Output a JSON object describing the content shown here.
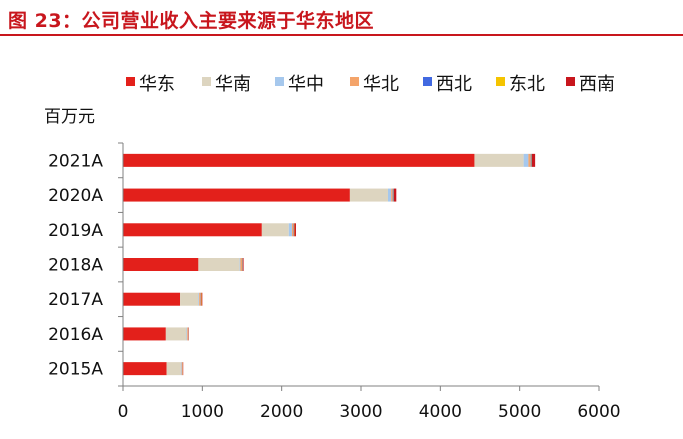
{
  "figure_title": "图 23：公司营业收入主要来源于华东地区",
  "chart_data": {
    "type": "bar",
    "orientation": "horizontal",
    "stacked": true,
    "unit_label": "百万元",
    "categories": [
      "2021A",
      "2020A",
      "2019A",
      "2018A",
      "2017A",
      "2016A",
      "2015A"
    ],
    "series": [
      {
        "name": "华东",
        "color": "#e3201b",
        "values": [
          4430,
          2860,
          1750,
          950,
          720,
          540,
          550
        ]
      },
      {
        "name": "华南",
        "color": "#ddd5c0",
        "values": [
          620,
          480,
          340,
          520,
          230,
          260,
          180
        ]
      },
      {
        "name": "华中",
        "color": "#a6c8ed",
        "values": [
          60,
          40,
          40,
          10,
          10,
          10,
          10
        ]
      },
      {
        "name": "华北",
        "color": "#f4a46a",
        "values": [
          30,
          20,
          20,
          20,
          20,
          10,
          10
        ]
      },
      {
        "name": "西北",
        "color": "#4169e1",
        "values": [
          10,
          10,
          5,
          5,
          5,
          2,
          2
        ]
      },
      {
        "name": "东北",
        "color": "#f5c400",
        "values": [
          5,
          5,
          5,
          5,
          5,
          2,
          2
        ]
      },
      {
        "name": "西南",
        "color": "#c8161d",
        "values": [
          40,
          30,
          20,
          10,
          10,
          5,
          5
        ]
      }
    ],
    "xlim": [
      0,
      6000
    ],
    "xticks": [
      "0",
      "1000",
      "2000",
      "3000",
      "4000",
      "5000",
      "6000"
    ],
    "legend_position": "top",
    "grid": false
  }
}
